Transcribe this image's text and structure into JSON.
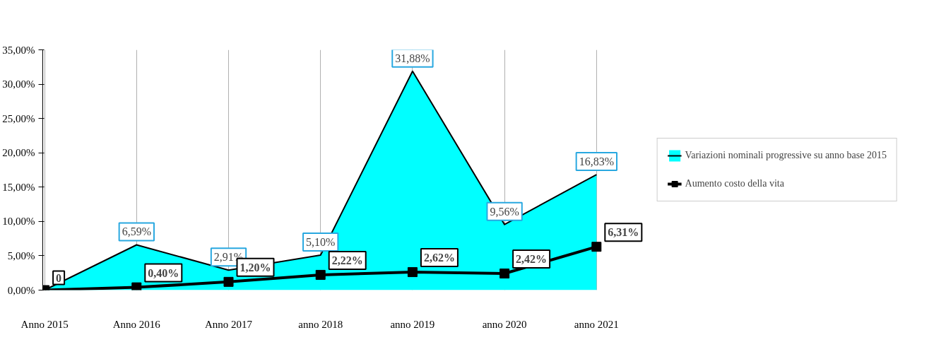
{
  "chart_data": {
    "type": "area",
    "categories": [
      "Anno 2015",
      "Anno 2016",
      "Anno 2017",
      "anno 2018",
      "anno 2019",
      "anno 2020",
      "anno 2021"
    ],
    "series": [
      {
        "name": "Variazioni nominali progressive su anno base 2015",
        "color": "#00ffff",
        "values": [
          0,
          6.59,
          2.91,
          5.1,
          31.88,
          9.56,
          16.83
        ],
        "value_labels": [
          null,
          "6,59%",
          "2,91%",
          "5,10%",
          "31,88%",
          "9,56%",
          "16,83%"
        ]
      },
      {
        "name": "Aumento costo della vita",
        "type": "line",
        "color": "#000000",
        "marker": "square",
        "line_style": "solid",
        "values": [
          0,
          0.4,
          1.2,
          2.22,
          2.62,
          2.42,
          6.31
        ],
        "value_labels": [
          "0",
          "0,40%",
          "1,20%",
          "2,22%",
          "2,62%",
          "2,42%",
          "6,31%"
        ]
      }
    ],
    "ylim": [
      0,
      35
    ],
    "yticks": [
      {
        "value": 0,
        "label": "0,00%"
      },
      {
        "value": 5,
        "label": "5,00%"
      },
      {
        "value": 10,
        "label": "10,00%"
      },
      {
        "value": 15,
        "label": "15,00%"
      },
      {
        "value": 20,
        "label": "20,00%"
      },
      {
        "value": 25,
        "label": "25,00%"
      },
      {
        "value": 30,
        "label": "30,00%"
      },
      {
        "value": 35,
        "label": "35,00%"
      }
    ],
    "grid": "x",
    "legend": "right"
  }
}
